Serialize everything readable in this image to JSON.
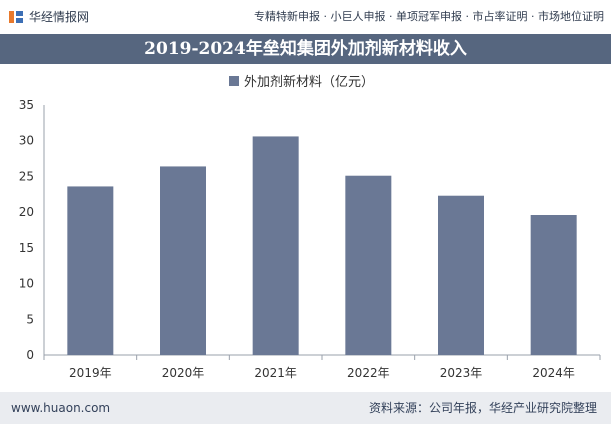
{
  "header": {
    "brand": "华经情报网",
    "tagline": "专精特新申报 · 小巨人申报 · 单项冠军申报 · 市占率证明 · 市场地位证明"
  },
  "title": "2019-2024年垒知集团外加剂新材料收入",
  "chart_data": {
    "type": "bar",
    "title": "2019-2024年垒知集团外加剂新材料收入",
    "categories": [
      "2019年",
      "2020年",
      "2021年",
      "2022年",
      "2023年",
      "2024年"
    ],
    "series": [
      {
        "name": "外加剂新材料（亿元）",
        "values": [
          23.6,
          26.4,
          30.6,
          25.1,
          22.3,
          19.6
        ]
      }
    ],
    "ylim": [
      0,
      35
    ],
    "yticks": [
      0,
      5,
      10,
      15,
      20,
      25,
      30,
      35
    ],
    "xlabel": "",
    "ylabel": "",
    "legend_position": "top-center",
    "colors": {
      "bar": "#6a7895",
      "axis": "#9aa1ab"
    }
  },
  "footer": {
    "site": "www.huaon.com",
    "source": "资料来源：公司年报，华经产业研究院整理"
  }
}
